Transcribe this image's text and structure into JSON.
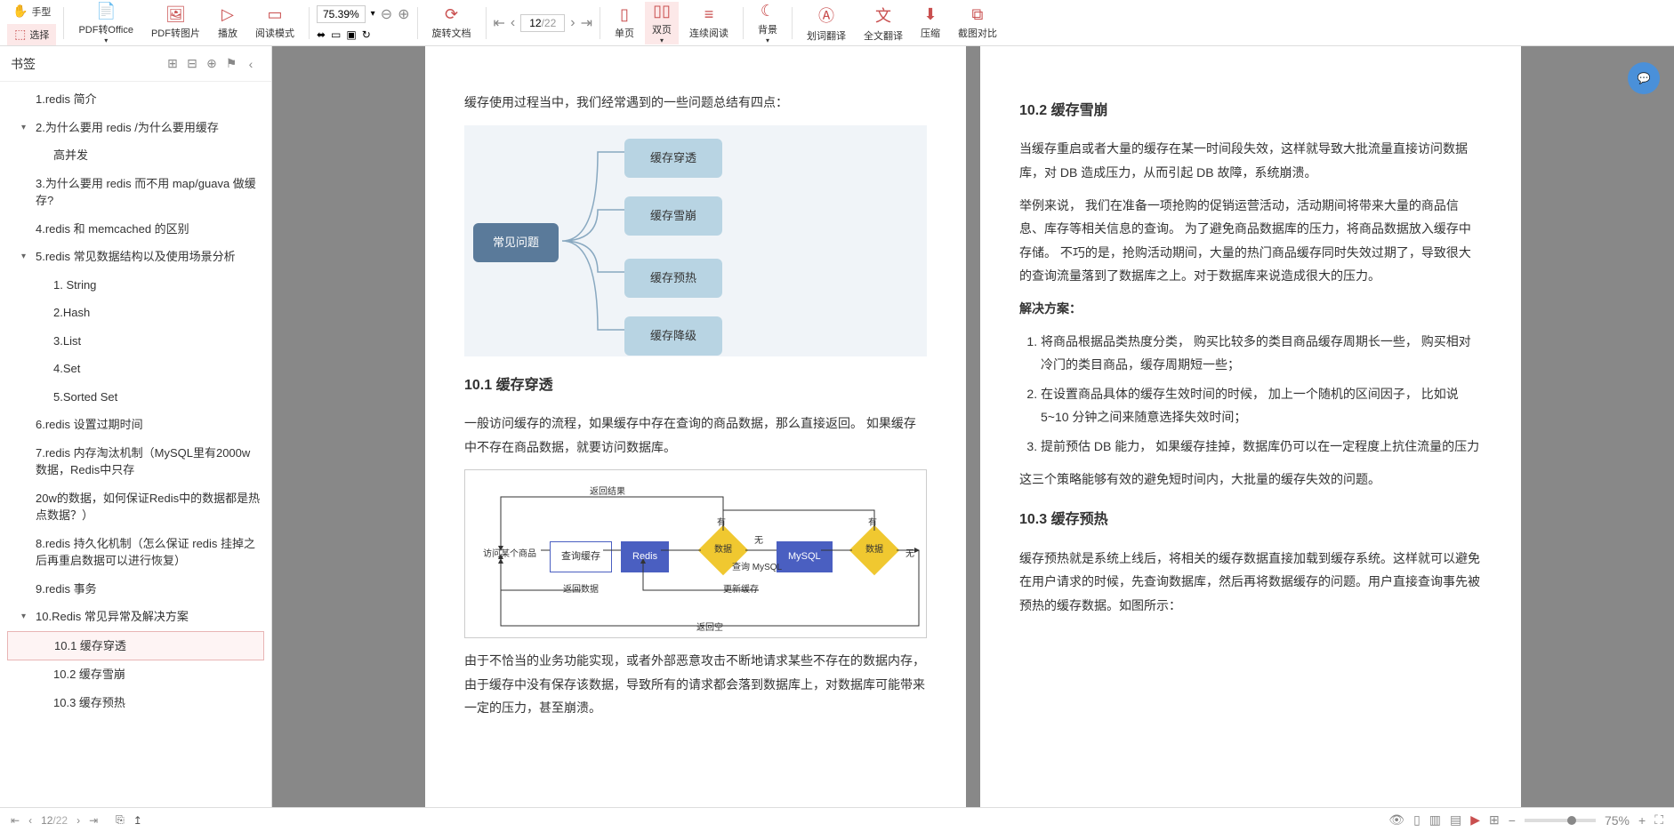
{
  "toolbar": {
    "hand": "手型",
    "select": "选择",
    "pdf_office": "PDF转Office",
    "pdf_image": "PDF转图片",
    "play": "播放",
    "read_mode": "阅读模式",
    "zoom": "75.39%",
    "rotate": "旋转文档",
    "single": "单页",
    "double": "双页",
    "continuous": "连续阅读",
    "background": "背景",
    "page_current": "12",
    "page_total": "/22",
    "word_trans": "划词翻译",
    "full_trans": "全文翻译",
    "compress": "压缩",
    "crop": "截图对比"
  },
  "sidebar": {
    "title": "书签",
    "items": [
      {
        "label": "1.redis 简介",
        "level": 1
      },
      {
        "label": "2.为什么要用 redis /为什么要用缓存",
        "level": 1,
        "caret": true
      },
      {
        "label": "高并发",
        "level": 2
      },
      {
        "label": "3.为什么要用 redis 而不用 map/guava 做缓存?",
        "level": 1
      },
      {
        "label": "4.redis 和 memcached 的区别",
        "level": 1
      },
      {
        "label": "5.redis 常见数据结构以及使用场景分析",
        "level": 1,
        "caret": true
      },
      {
        "label": "1. String",
        "level": 2
      },
      {
        "label": "2.Hash",
        "level": 2
      },
      {
        "label": "3.List",
        "level": 2
      },
      {
        "label": "4.Set",
        "level": 2
      },
      {
        "label": "5.Sorted Set",
        "level": 2
      },
      {
        "label": "6.redis 设置过期时间",
        "level": 1
      },
      {
        "label": "7.redis 内存淘汰机制（MySQL里有2000w数据，Redis中只存",
        "level": 1
      },
      {
        "label": "20w的数据，如何保证Redis中的数据都是热点数据？）",
        "level": 1
      },
      {
        "label": "8.redis 持久化机制（怎么保证 redis 挂掉之后再重启数据可以进行恢复）",
        "level": 1
      },
      {
        "label": "9.redis 事务",
        "level": 1
      },
      {
        "label": "10.Redis 常见异常及解决方案",
        "level": 1,
        "caret": true
      },
      {
        "label": "10.1 缓存穿透",
        "level": 2,
        "selected": true
      },
      {
        "label": "10.2 缓存雪崩",
        "level": 2
      },
      {
        "label": "10.3 缓存预热",
        "level": 2
      }
    ]
  },
  "left_page": {
    "intro": "缓存使用过程当中，我们经常遇到的一些问题总结有四点：",
    "diagram": {
      "main": "常见问题",
      "leaves": [
        "缓存穿透",
        "缓存雪崩",
        "缓存预热",
        "缓存降级"
      ],
      "main_color": "#5a7a9a",
      "leaf_color": "#b8d4e3"
    },
    "h1": "10.1 缓存穿透",
    "p1": "一般访问缓存的流程，如果缓存中存在查询的商品数据，那么直接返回。 如果缓存中不存在商品数据，就要访问数据库。",
    "flowchart": {
      "nodes": {
        "start": "访问某个商品",
        "query": "查询缓存",
        "redis": "Redis",
        "data1": "数据",
        "mysql_label": "查询 MySQL",
        "mysql": "MySQL",
        "data2": "数据"
      },
      "labels": {
        "return_result": "返回结果",
        "has": "有",
        "none": "无",
        "return_data": "返回数据",
        "update_cache": "更新缓存",
        "return_empty": "返回空"
      }
    },
    "p2": "由于不恰当的业务功能实现，或者外部恶意攻击不断地请求某些不存在的数据内存，由于缓存中没有保存该数据，导致所有的请求都会落到数据库上，对数据库可能带来一定的压力，甚至崩溃。"
  },
  "right_page": {
    "h1": "10.2 缓存雪崩",
    "p1": "当缓存重启或者大量的缓存在某一时间段失效，这样就导致大批流量直接访问数据库，对 DB 造成压力，从而引起 DB 故障，系统崩溃。",
    "p2": "举例来说， 我们在准备一项抢购的促销运营活动，活动期间将带来大量的商品信息、库存等相关信息的查询。 为了避免商品数据库的压力，将商品数据放入缓存中存储。 不巧的是，抢购活动期间，大量的热门商品缓存同时失效过期了，导致很大的查询流量落到了数据库之上。对于数据库来说造成很大的压力。",
    "h_solution": "解决方案：",
    "solutions": [
      "将商品根据品类热度分类， 购买比较多的类目商品缓存周期长一些， 购买相对冷门的类目商品，缓存周期短一些；",
      "在设置商品具体的缓存生效时间的时候， 加上一个随机的区间因子， 比如说 5~10 分钟之间来随意选择失效时间；",
      "提前预估 DB 能力， 如果缓存挂掉，数据库仍可以在一定程度上抗住流量的压力"
    ],
    "p3": "这三个策略能够有效的避免短时间内，大批量的缓存失效的问题。",
    "h2": "10.3 缓存预热",
    "p4": "缓存预热就是系统上线后，将相关的缓存数据直接加载到缓存系统。这样就可以避免在用户请求的时候，先查询数据库，然后再将数据缓存的问题。用户直接查询事先被预热的缓存数据。如图所示："
  },
  "statusbar": {
    "page": "12",
    "total": "/22",
    "zoom": "75%"
  }
}
